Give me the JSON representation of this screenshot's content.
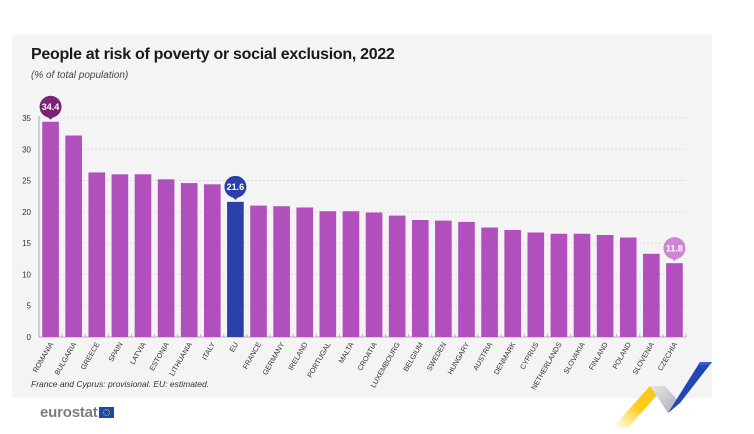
{
  "chart_data": {
    "type": "bar",
    "title": "People at risk of poverty or social exclusion, 2022",
    "subtitle": "(% of total population)",
    "xlabel": "",
    "ylabel": "",
    "ylim": [
      0,
      35
    ],
    "yticks": [
      0,
      5,
      10,
      15,
      20,
      25,
      30,
      35
    ],
    "grid": true,
    "categories": [
      "ROMANIA",
      "BULGARIA",
      "GREECE",
      "SPAIN",
      "LATVIA",
      "ESTONIA",
      "LITHUANIA",
      "ITALY",
      "EU",
      "FRANCE",
      "GERMANY",
      "IRELAND",
      "PORTUGAL",
      "MALTA",
      "CROATIA",
      "LUXEMBOURG",
      "BELGIUM",
      "SWEDEN",
      "HUNGARY",
      "AUSTRIA",
      "DENMARK",
      "CYPRUS",
      "NETHERLANDS",
      "SLOVAKIA",
      "FINLAND",
      "POLAND",
      "SLOVENIA",
      "CZECHIA"
    ],
    "values": [
      34.4,
      32.2,
      26.3,
      26.0,
      26.0,
      25.2,
      24.6,
      24.4,
      21.6,
      21.0,
      20.9,
      20.7,
      20.1,
      20.1,
      19.9,
      19.4,
      18.7,
      18.6,
      18.4,
      17.5,
      17.1,
      16.7,
      16.5,
      16.5,
      16.3,
      15.9,
      13.3,
      11.8
    ],
    "highlight": {
      "EU": "#2b3fa8"
    },
    "bar_color": "#b14fbc",
    "annotations": [
      {
        "category": "ROMANIA",
        "label": "34.4",
        "color": "#7b2477"
      },
      {
        "category": "EU",
        "label": "21.6",
        "color": "#2b3fa8"
      },
      {
        "category": "CZECHIA",
        "label": "11.8",
        "color": "#cf85d6"
      }
    ],
    "note": "France and Cyprus: provisional. EU: estimated."
  },
  "branding": {
    "logo_text": "eurostat",
    "logo_icon": "eu-flag-icon"
  }
}
